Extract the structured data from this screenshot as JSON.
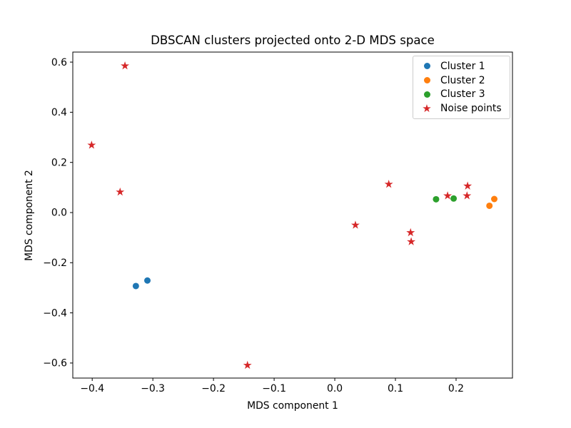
{
  "figure": {
    "background": "#ffffff"
  },
  "chart_data": {
    "type": "scatter",
    "title": "DBSCAN clusters projected onto 2-D MDS space",
    "xlabel": "MDS component 1",
    "ylabel": "MDS component 2",
    "xlim": [
      -0.432,
      0.293
    ],
    "ylim": [
      -0.66,
      0.64
    ],
    "grid": false,
    "legend_position": "upper right",
    "x_ticks": {
      "values": [
        -0.4,
        -0.3,
        -0.2,
        -0.1,
        0.0,
        0.1,
        0.2
      ],
      "labels": [
        "−0.4",
        "−0.3",
        "−0.2",
        "−0.1",
        "0.0",
        "0.1",
        "0.2"
      ]
    },
    "y_ticks": {
      "values": [
        0.6,
        0.4,
        0.2,
        0.0,
        -0.2,
        -0.4,
        -0.6
      ],
      "labels": [
        "0.6",
        "0.4",
        "0.2",
        "0.0",
        "−0.2",
        "−0.4",
        "−0.6"
      ]
    },
    "series": [
      {
        "name": "Cluster 1",
        "marker": "circle",
        "color": "#1f77b4",
        "points": [
          [
            -0.328,
            -0.293
          ],
          [
            -0.309,
            -0.271
          ]
        ]
      },
      {
        "name": "Cluster 2",
        "marker": "circle",
        "color": "#ff7f0e",
        "points": [
          [
            0.255,
            0.027
          ],
          [
            0.263,
            0.054
          ]
        ]
      },
      {
        "name": "Cluster 3",
        "marker": "circle",
        "color": "#2ca02c",
        "points": [
          [
            0.167,
            0.053
          ],
          [
            0.196,
            0.056
          ]
        ]
      },
      {
        "name": "Noise points",
        "marker": "star",
        "color": "#d62728",
        "points": [
          [
            -0.346,
            0.585
          ],
          [
            -0.401,
            0.269
          ],
          [
            -0.354,
            0.082
          ],
          [
            -0.144,
            -0.609
          ],
          [
            0.034,
            -0.05
          ],
          [
            0.089,
            0.113
          ],
          [
            0.125,
            -0.08
          ],
          [
            0.126,
            -0.116
          ],
          [
            0.186,
            0.067
          ],
          [
            0.218,
            0.067
          ],
          [
            0.219,
            0.106
          ]
        ]
      }
    ]
  }
}
